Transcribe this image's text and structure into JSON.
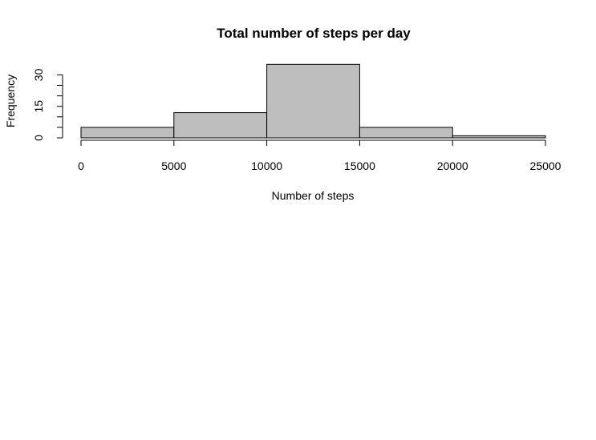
{
  "chart_data": {
    "type": "bar",
    "title": "Total number of steps per day",
    "xlabel": "Number of steps",
    "ylabel": "Frequency",
    "bins": [
      {
        "start": 0,
        "end": 5000,
        "count": 5
      },
      {
        "start": 5000,
        "end": 10000,
        "count": 12
      },
      {
        "start": 10000,
        "end": 15000,
        "count": 35
      },
      {
        "start": 15000,
        "end": 20000,
        "count": 5
      },
      {
        "start": 20000,
        "end": 25000,
        "count": 1
      }
    ],
    "xlim": [
      0,
      25000
    ],
    "ylim": [
      0,
      35
    ],
    "x_ticks": [
      "0",
      "5000",
      "10000",
      "15000",
      "20000",
      "25000"
    ],
    "y_ticks": [
      "0",
      "15",
      "30"
    ],
    "bar_color": "#bebebe",
    "grid": false
  }
}
